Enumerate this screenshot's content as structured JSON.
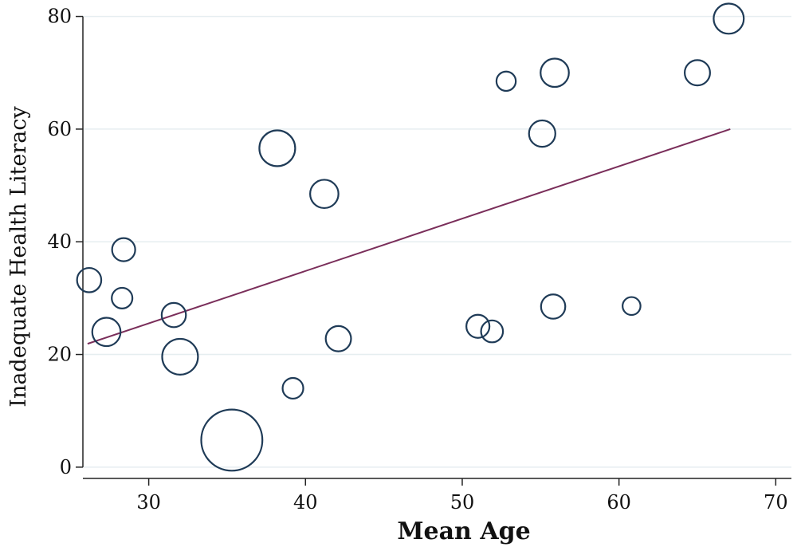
{
  "chart_data": {
    "type": "scatter",
    "title": "",
    "xlabel": "Mean Age",
    "ylabel": "Inadequate Health Literacy",
    "xlim": [
      25.8,
      71
    ],
    "ylim": [
      -2,
      81.5
    ],
    "xticks": [
      30,
      40,
      50,
      60,
      70
    ],
    "yticks": [
      0,
      20,
      40,
      60,
      80
    ],
    "grid": "horizontal",
    "colors": {
      "marker": "#1f3b57",
      "fit_line": "#7a2e5a",
      "grid": "#e6eef0"
    },
    "points": [
      {
        "x": 26.2,
        "y": 33.2,
        "weight": 1.1
      },
      {
        "x": 27.3,
        "y": 24.0,
        "weight": 1.5
      },
      {
        "x": 28.3,
        "y": 30.0,
        "weight": 0.8
      },
      {
        "x": 28.4,
        "y": 38.6,
        "weight": 1.0
      },
      {
        "x": 31.6,
        "y": 27.0,
        "weight": 1.1
      },
      {
        "x": 32.0,
        "y": 19.6,
        "weight": 2.4
      },
      {
        "x": 35.3,
        "y": 4.8,
        "weight": 7.0
      },
      {
        "x": 38.2,
        "y": 56.6,
        "weight": 2.4
      },
      {
        "x": 39.2,
        "y": 14.0,
        "weight": 0.8
      },
      {
        "x": 41.2,
        "y": 48.5,
        "weight": 1.5
      },
      {
        "x": 42.1,
        "y": 22.8,
        "weight": 1.2
      },
      {
        "x": 51.0,
        "y": 25.0,
        "weight": 1.0
      },
      {
        "x": 51.9,
        "y": 24.1,
        "weight": 0.9
      },
      {
        "x": 52.8,
        "y": 68.5,
        "weight": 0.7
      },
      {
        "x": 55.1,
        "y": 59.2,
        "weight": 1.3
      },
      {
        "x": 55.8,
        "y": 28.5,
        "weight": 1.1
      },
      {
        "x": 55.9,
        "y": 70.0,
        "weight": 1.5
      },
      {
        "x": 60.8,
        "y": 28.6,
        "weight": 0.6
      },
      {
        "x": 65.0,
        "y": 70.0,
        "weight": 1.2
      },
      {
        "x": 67.0,
        "y": 79.6,
        "weight": 1.7
      }
    ],
    "fit_line": {
      "x": [
        26.1,
        67.1
      ],
      "y": [
        21.9,
        60.0
      ]
    }
  }
}
